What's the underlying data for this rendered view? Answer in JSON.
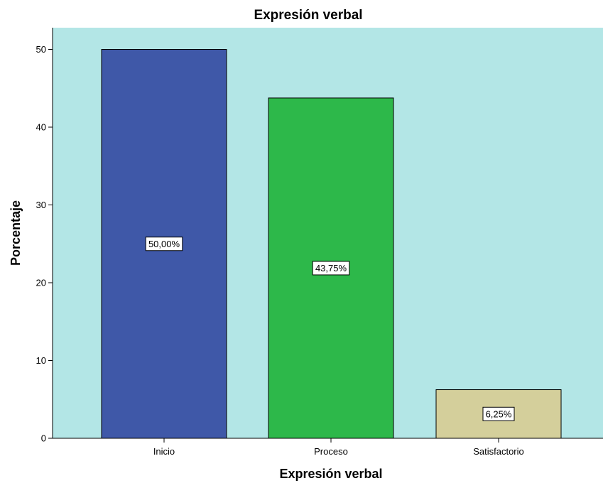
{
  "chart_data": {
    "type": "bar",
    "title": "Expresión verbal",
    "xlabel": "Expresión verbal",
    "ylabel": "Porcentaje",
    "categories": [
      "Inicio",
      "Proceso",
      "Satisfactorio"
    ],
    "values": [
      50.0,
      43.75,
      6.25
    ],
    "data_labels": [
      "50,00%",
      "43,75%",
      "6,25%"
    ],
    "bar_colors": [
      "#3f58a8",
      "#2db84a",
      "#d4cf9b"
    ],
    "ylim": [
      0,
      55
    ],
    "yticks": [
      0,
      10,
      20,
      30,
      40,
      50
    ],
    "grid": false,
    "legend": "none",
    "plot_background": "#b3e6e6"
  }
}
